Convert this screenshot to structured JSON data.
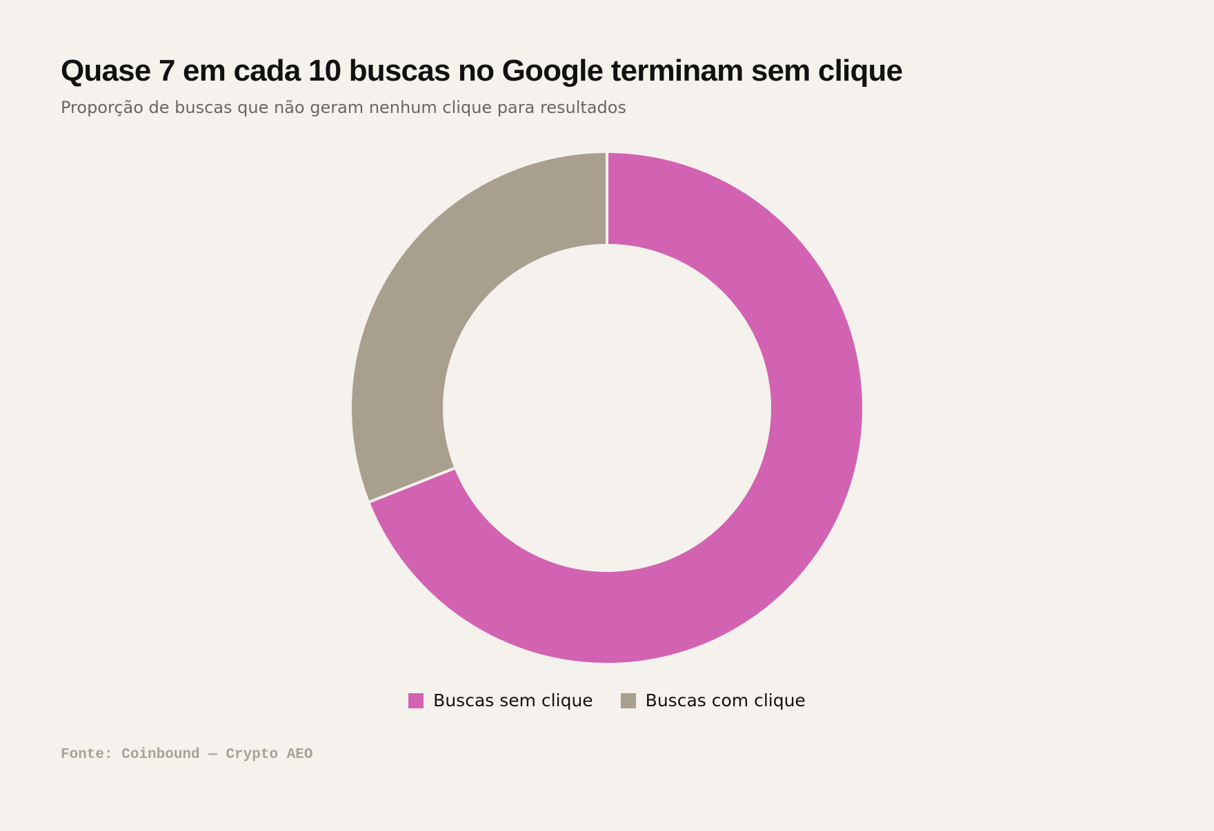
{
  "header": {
    "title": "Quase 7 em cada 10 buscas no Google terminam sem clique",
    "subtitle": "Proporção de buscas que não geram nenhum clique para resultados"
  },
  "chart_data": {
    "type": "pie",
    "variant": "donut",
    "title": "Quase 7 em cada 10 buscas no Google terminam sem clique",
    "subtitle": "Proporção de buscas que não geram nenhum clique para resultados",
    "slices": [
      {
        "label": "Buscas sem clique",
        "value": 69,
        "color": "#d262b2"
      },
      {
        "label": "Buscas com clique",
        "value": 31,
        "color": "#a89f8f"
      }
    ],
    "legend_position": "bottom",
    "start": "top, clockwise"
  },
  "footer": {
    "source": "Fonte: Coinbound — Crypto AEO"
  },
  "colors": {
    "background": "#f5f1ec",
    "separator": "#f5f1ec"
  }
}
